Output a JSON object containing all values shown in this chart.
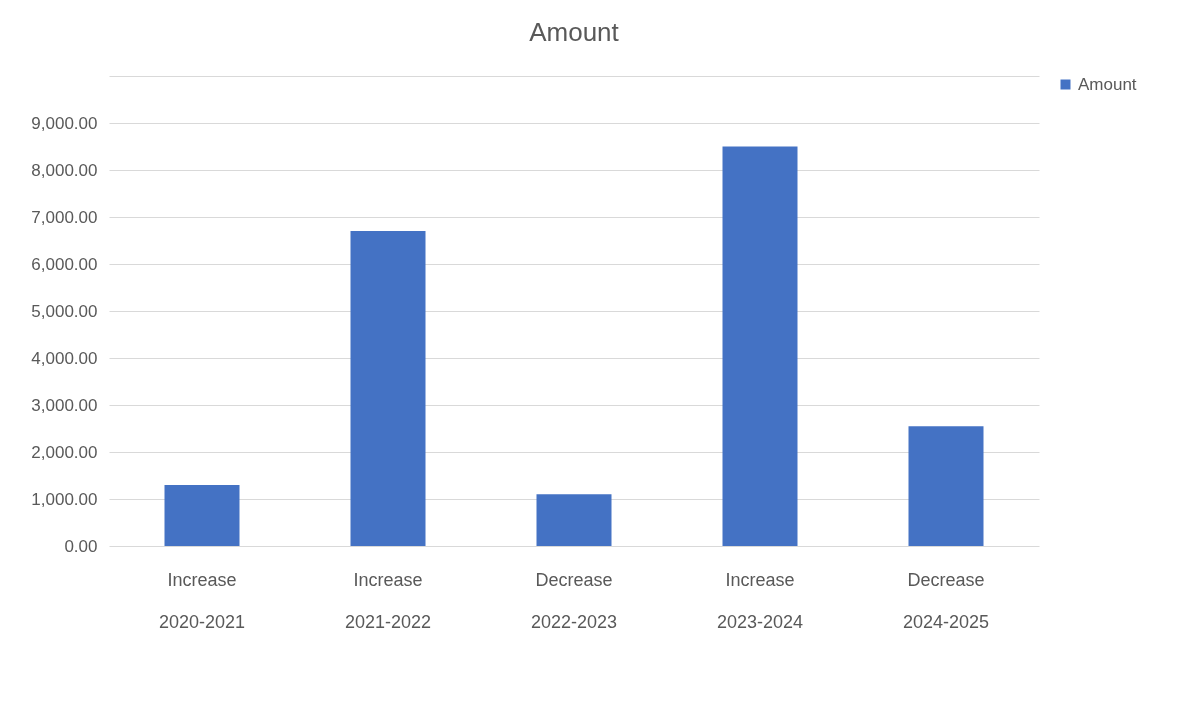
{
  "chart_data": {
    "type": "bar",
    "title": "Amount",
    "categories": [
      "Increase\n2020-2021",
      "Increase\n2021-2022",
      "Decrease\n2022-2023",
      "Increase\n2023-2024",
      "Decrease\n2024-2025"
    ],
    "series": [
      {
        "name": "Amount",
        "color": "#4472c4",
        "values": [
          1300,
          6700,
          1100,
          8500,
          2550
        ]
      }
    ],
    "ylim": [
      0,
      10000
    ],
    "yticks": [
      {
        "value": 0,
        "label": "0.00"
      },
      {
        "value": 1000,
        "label": "1,000.00"
      },
      {
        "value": 2000,
        "label": "2,000.00"
      },
      {
        "value": 3000,
        "label": "3,000.00"
      },
      {
        "value": 4000,
        "label": "4,000.00"
      },
      {
        "value": 5000,
        "label": "5,000.00"
      },
      {
        "value": 6000,
        "label": "6,000.00"
      },
      {
        "value": 7000,
        "label": "7,000.00"
      },
      {
        "value": 8000,
        "label": "8,000.00"
      },
      {
        "value": 9000,
        "label": "9,000.00"
      },
      {
        "value": 10000,
        "label": null
      }
    ],
    "grid": "y",
    "legend": "right"
  }
}
